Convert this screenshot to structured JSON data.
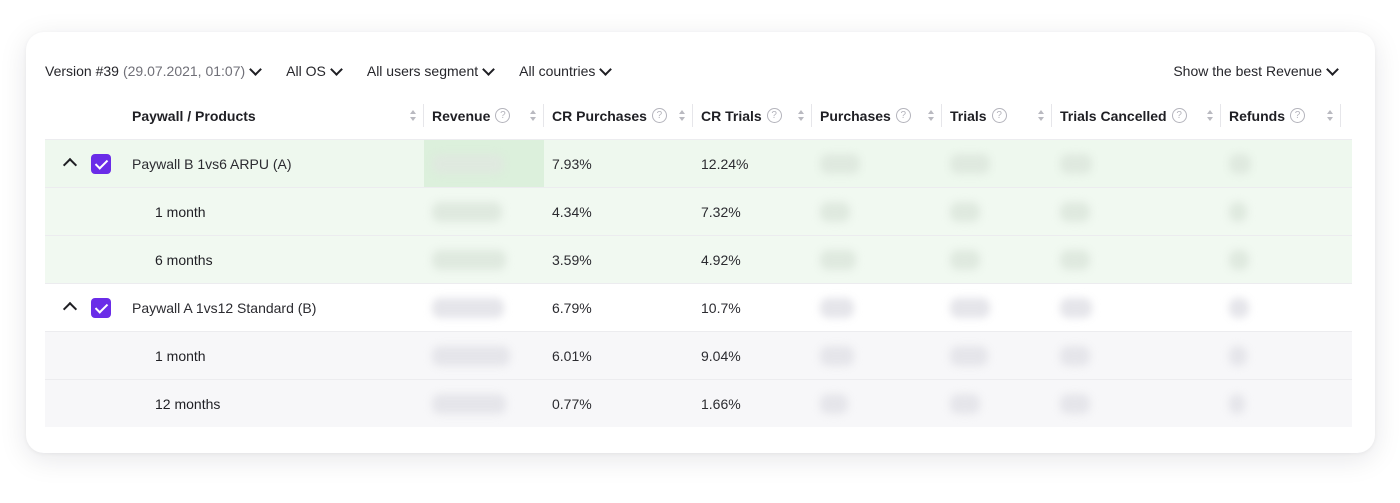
{
  "filters": {
    "version": "Version #39",
    "version_date": "(29.07.2021, 01:07)",
    "os": "All OS",
    "segment": "All users segment",
    "countries": "All countries",
    "best": "Show the best Revenue"
  },
  "columns": [
    {
      "key": "product",
      "label": "Paywall / Products",
      "help": false
    },
    {
      "key": "revenue",
      "label": "Revenue",
      "help": true
    },
    {
      "key": "cr_purchases",
      "label": "CR Purchases",
      "help": true
    },
    {
      "key": "cr_trials",
      "label": "CR Trials",
      "help": true
    },
    {
      "key": "purchases",
      "label": "Purchases",
      "help": true
    },
    {
      "key": "trials",
      "label": "Trials",
      "help": true
    },
    {
      "key": "trials_cancelled",
      "label": "Trials Cancelled",
      "help": true
    },
    {
      "key": "refunds",
      "label": "Refunds",
      "help": true
    }
  ],
  "help_glyph": "?",
  "groups": [
    {
      "name": "Paywall B 1vs6 ARPU (A)",
      "checked": true,
      "expanded": true,
      "cr_purchases": "7.93%",
      "cr_trials": "12.24%",
      "products": [
        {
          "name": "1 month",
          "cr_purchases": "4.34%",
          "cr_trials": "7.32%"
        },
        {
          "name": "6 months",
          "cr_purchases": "3.59%",
          "cr_trials": "4.92%"
        }
      ]
    },
    {
      "name": "Paywall A 1vs12 Standard (B)",
      "checked": true,
      "expanded": true,
      "cr_purchases": "6.79%",
      "cr_trials": "10.7%",
      "products": [
        {
          "name": "1 month",
          "cr_purchases": "6.01%",
          "cr_trials": "9.04%"
        },
        {
          "name": "12 months",
          "cr_purchases": "0.77%",
          "cr_trials": "1.66%"
        }
      ]
    }
  ],
  "colors": {
    "checkbox": "#6a2ce8",
    "group_a_bg": "#eef8ee",
    "best_cell": "#dcf0dc"
  }
}
